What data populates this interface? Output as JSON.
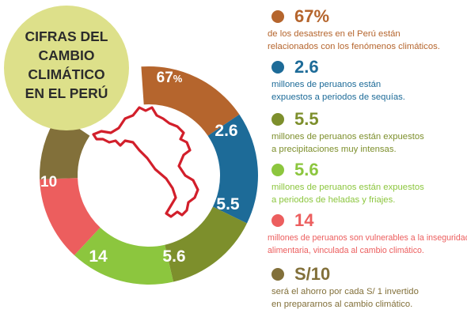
{
  "title_lines": [
    "CIFRAS DEL",
    "CAMBIO",
    "CLIMÁTICO",
    "EN EL PERÚ"
  ],
  "colors": {
    "title_circle": "#dde08a",
    "title_text": "#2c2c2c",
    "map_outline": "#d21f2b"
  },
  "ring_segments": [
    {
      "label": "67",
      "suffix": "%",
      "color": "#b5652d"
    },
    {
      "label": "2.6",
      "suffix": "",
      "color": "#1d6b98"
    },
    {
      "label": "5.5",
      "suffix": "",
      "color": "#7d8f2c"
    },
    {
      "label": "5.6",
      "suffix": "",
      "color": "#8cc63e"
    },
    {
      "label": "14",
      "suffix": "",
      "color": "#ec5e5e"
    },
    {
      "label": "S/ 10",
      "suffix": "",
      "color": "#82703a"
    }
  ],
  "stats": [
    {
      "value": "67%",
      "color": "#b5652d",
      "lines": [
        "de los desastres en el Perú están",
        "relacionados con los fenómenos climáticos."
      ]
    },
    {
      "value": "2.6",
      "color": "#1d6b98",
      "lines": [
        "millones de peruanos están",
        "expuestos a periodos de sequías."
      ]
    },
    {
      "value": "5.5",
      "color": "#7d8f2c",
      "lines": [
        "millones de peruanos están expuestos",
        "a precipitaciones muy intensas."
      ]
    },
    {
      "value": "5.6",
      "color": "#8cc63e",
      "lines": [
        "millones de peruanos están expuestos",
        "a periodos de heladas y friajes."
      ]
    },
    {
      "value": "14",
      "color": "#ec5e5e",
      "lines": [
        "millones de peruanos son vulnerables a la inseguridad",
        "alimentaria, vinculada al cambio climático."
      ]
    },
    {
      "value": "S/10",
      "color": "#82703a",
      "lines": [
        "será el ahorro por cada S/ 1 invertido",
        "en prepararnos al cambio climático."
      ]
    }
  ]
}
